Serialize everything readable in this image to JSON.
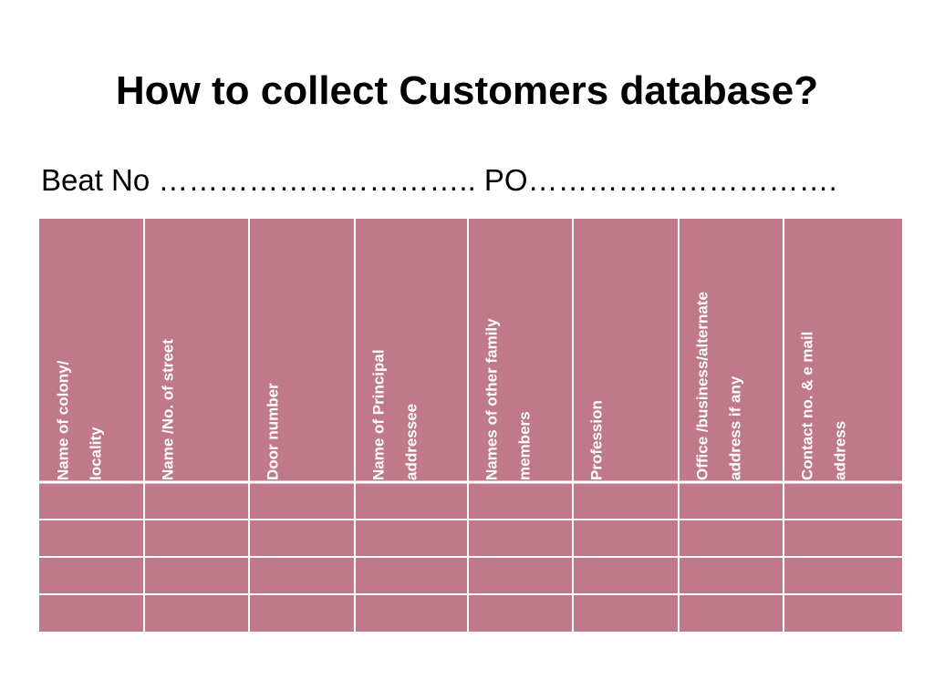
{
  "header": {
    "title": "How to collect Customers database?",
    "subtitle": "Beat No ………………………….. PO…………………………."
  },
  "table": {
    "headers": [
      [
        "Name of colony/",
        "locality"
      ],
      [
        "Name /No. of street"
      ],
      [
        "Door number"
      ],
      [
        "Name of Principal",
        "addressee"
      ],
      [
        "Names of other family",
        "members"
      ],
      [
        "Profession"
      ],
      [
        "Office /business/alternate",
        "address if any"
      ],
      [
        "Contact no. & e mail",
        "address"
      ]
    ]
  }
}
